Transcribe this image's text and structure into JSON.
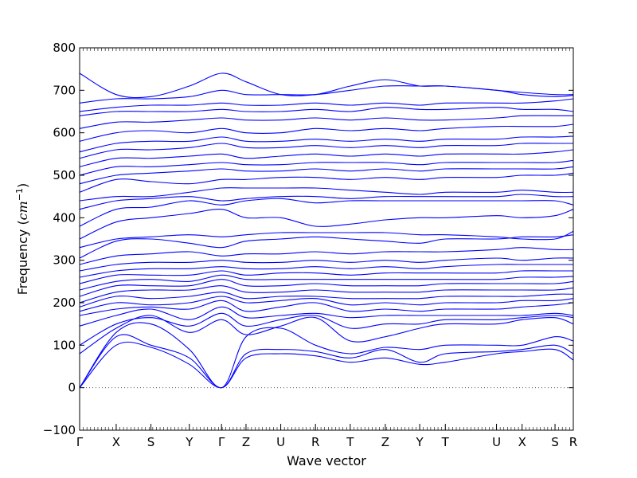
{
  "chart_data": {
    "type": "line",
    "xlabel": "Wave vector",
    "ylabel": "Frequency (cm⁻¹)",
    "ylabel_parts": {
      "text": "Frequency (",
      "unit_base": "cm",
      "unit_exp": "−1",
      "close": ")"
    },
    "ylim": [
      -100,
      800
    ],
    "y_ticks": [
      -100,
      0,
      100,
      200,
      300,
      400,
      500,
      600,
      700,
      800
    ],
    "y_tick_labels": [
      "−100",
      "0",
      "100",
      "200",
      "300",
      "400",
      "500",
      "600",
      "700",
      "800"
    ],
    "x_range": [
      0,
      13.5
    ],
    "high_symmetry_points": [
      {
        "label": "Γ",
        "x": 0.0
      },
      {
        "label": "X",
        "x": 1.0
      },
      {
        "label": "S",
        "x": 1.95
      },
      {
        "label": "Y",
        "x": 3.0
      },
      {
        "label": "Γ",
        "x": 3.88
      },
      {
        "label": "Z",
        "x": 4.55
      },
      {
        "label": "U",
        "x": 5.5
      },
      {
        "label": "R",
        "x": 6.45
      },
      {
        "label": "T",
        "x": 7.4
      },
      {
        "label": "Z",
        "x": 8.36
      },
      {
        "label": "Y",
        "x": 9.3
      },
      {
        "label": "T",
        "x": 10.0
      },
      {
        "label": "U",
        "x": 11.4
      },
      {
        "label": "X",
        "x": 12.1
      },
      {
        "label": "S",
        "x": 13.0
      },
      {
        "label": "R",
        "x": 13.5
      }
    ],
    "zero_line": 0,
    "grid": false,
    "legend": "none",
    "series_color": "#0000ff",
    "band_anchor_x": [
      0.0,
      1.0,
      1.95,
      3.0,
      3.88,
      4.55,
      5.5,
      6.45,
      7.4,
      8.36,
      9.3,
      10.0,
      11.4,
      12.1,
      13.0,
      13.5
    ],
    "series": [
      {
        "values": [
          0,
          100,
          95,
          55,
          0,
          70,
          80,
          75,
          60,
          70,
          55,
          60,
          80,
          85,
          90,
          65
        ]
      },
      {
        "values": [
          0,
          120,
          100,
          70,
          0,
          80,
          90,
          85,
          70,
          90,
          60,
          80,
          85,
          90,
          100,
          80
        ]
      },
      {
        "values": [
          0,
          130,
          150,
          90,
          0,
          120,
          140,
          100,
          80,
          95,
          90,
          100,
          100,
          100,
          120,
          110
        ]
      },
      {
        "values": [
          80,
          140,
          170,
          130,
          160,
          125,
          145,
          165,
          110,
          120,
          140,
          150,
          150,
          160,
          165,
          150
        ]
      },
      {
        "values": [
          100,
          150,
          165,
          145,
          175,
          145,
          160,
          170,
          140,
          150,
          150,
          160,
          160,
          165,
          170,
          165
        ]
      },
      {
        "values": [
          145,
          170,
          185,
          160,
          190,
          165,
          170,
          175,
          165,
          170,
          170,
          170,
          170,
          170,
          175,
          170
        ]
      },
      {
        "values": [
          170,
          185,
          190,
          185,
          205,
          180,
          190,
          200,
          180,
          185,
          180,
          185,
          185,
          190,
          195,
          200
        ]
      },
      {
        "values": [
          180,
          200,
          195,
          200,
          215,
          200,
          205,
          210,
          195,
          200,
          195,
          200,
          200,
          205,
          205,
          210
        ]
      },
      {
        "values": [
          190,
          215,
          210,
          215,
          225,
          210,
          215,
          215,
          210,
          210,
          210,
          215,
          215,
          215,
          220,
          220
        ]
      },
      {
        "values": [
          200,
          225,
          230,
          230,
          240,
          225,
          225,
          230,
          225,
          225,
          225,
          230,
          230,
          230,
          230,
          235
        ]
      },
      {
        "values": [
          215,
          240,
          240,
          240,
          255,
          240,
          240,
          245,
          240,
          240,
          240,
          245,
          245,
          245,
          245,
          250
        ]
      },
      {
        "values": [
          230,
          250,
          255,
          250,
          265,
          255,
          255,
          255,
          255,
          255,
          255,
          255,
          255,
          260,
          260,
          262
        ]
      },
      {
        "values": [
          245,
          265,
          265,
          265,
          275,
          265,
          270,
          270,
          265,
          270,
          270,
          270,
          270,
          275,
          275,
          275
        ]
      },
      {
        "values": [
          260,
          275,
          280,
          280,
          285,
          280,
          280,
          285,
          280,
          285,
          280,
          285,
          290,
          290,
          290,
          290
        ]
      },
      {
        "values": [
          275,
          290,
          295,
          295,
          300,
          295,
          295,
          300,
          295,
          300,
          295,
          300,
          305,
          300,
          305,
          305
        ]
      },
      {
        "values": [
          290,
          310,
          315,
          320,
          310,
          315,
          315,
          320,
          315,
          320,
          320,
          320,
          325,
          330,
          325,
          325
        ]
      },
      {
        "values": [
          305,
          345,
          350,
          340,
          330,
          345,
          350,
          355,
          350,
          345,
          340,
          350,
          350,
          355,
          355,
          360
        ]
      },
      {
        "values": [
          330,
          350,
          355,
          360,
          355,
          360,
          365,
          365,
          365,
          365,
          360,
          360,
          355,
          350,
          350,
          368
        ]
      },
      {
        "values": [
          350,
          390,
          400,
          410,
          420,
          400,
          400,
          380,
          385,
          395,
          400,
          400,
          405,
          400,
          405,
          420
        ]
      },
      {
        "values": [
          380,
          420,
          425,
          440,
          430,
          440,
          445,
          435,
          440,
          440,
          440,
          440,
          440,
          440,
          440,
          430
        ]
      },
      {
        "values": [
          420,
          440,
          445,
          450,
          440,
          445,
          450,
          450,
          445,
          450,
          450,
          450,
          450,
          455,
          450,
          450
        ]
      },
      {
        "values": [
          440,
          450,
          450,
          460,
          470,
          470,
          470,
          470,
          465,
          460,
          455,
          460,
          460,
          465,
          460,
          460
        ]
      },
      {
        "values": [
          460,
          490,
          485,
          480,
          490,
          490,
          495,
          495,
          490,
          495,
          490,
          495,
          495,
          500,
          500,
          505
        ]
      },
      {
        "values": [
          480,
          500,
          505,
          510,
          515,
          510,
          510,
          515,
          510,
          515,
          510,
          515,
          515,
          515,
          515,
          520
        ]
      },
      {
        "values": [
          500,
          520,
          520,
          525,
          530,
          525,
          525,
          530,
          530,
          530,
          525,
          530,
          530,
          530,
          530,
          535
        ]
      },
      {
        "values": [
          520,
          540,
          540,
          545,
          550,
          540,
          545,
          550,
          545,
          550,
          545,
          550,
          550,
          550,
          555,
          560
        ]
      },
      {
        "values": [
          540,
          560,
          560,
          565,
          575,
          565,
          565,
          570,
          565,
          570,
          565,
          570,
          570,
          575,
          575,
          575
        ]
      },
      {
        "values": [
          555,
          575,
          580,
          580,
          590,
          580,
          580,
          585,
          580,
          585,
          580,
          585,
          585,
          590,
          590,
          592
        ]
      },
      {
        "values": [
          580,
          600,
          605,
          600,
          610,
          600,
          600,
          610,
          605,
          610,
          605,
          610,
          615,
          615,
          615,
          620
        ]
      },
      {
        "values": [
          610,
          625,
          625,
          630,
          635,
          630,
          630,
          635,
          630,
          635,
          630,
          630,
          635,
          640,
          640,
          640
        ]
      },
      {
        "values": [
          640,
          650,
          650,
          650,
          655,
          650,
          650,
          655,
          650,
          660,
          655,
          655,
          660,
          655,
          655,
          650
        ]
      },
      {
        "values": [
          650,
          660,
          665,
          665,
          670,
          665,
          665,
          670,
          665,
          670,
          665,
          670,
          670,
          670,
          675,
          680
        ]
      },
      {
        "values": [
          670,
          680,
          680,
          685,
          700,
          690,
          690,
          690,
          700,
          710,
          710,
          710,
          700,
          690,
          685,
          688
        ]
      },
      {
        "values": [
          740,
          690,
          685,
          710,
          740,
          720,
          690,
          690,
          710,
          725,
          710,
          710,
          700,
          695,
          690,
          690
        ]
      }
    ]
  }
}
